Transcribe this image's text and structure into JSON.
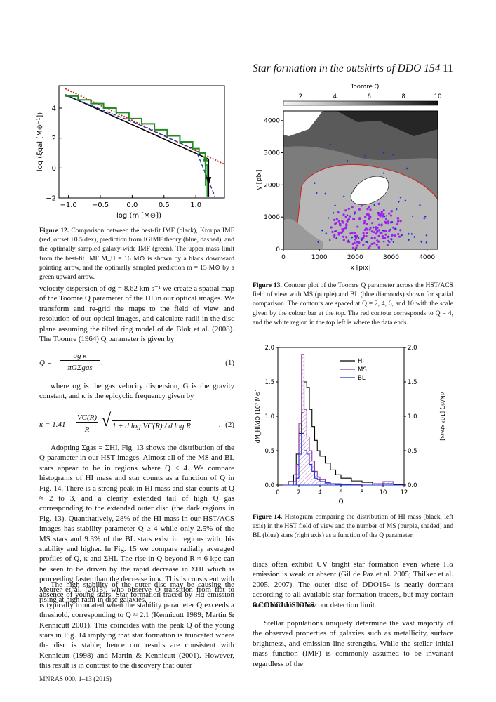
{
  "header": {
    "title": "Star formation in the outskirts of DDO 154",
    "page_number": "11"
  },
  "figure12": {
    "caption_label": "Figure 12.",
    "caption_text": "Comparison between the best-fit IMF (black), Kroupa IMF (red, offset +0.5 dex), prediction from IGIMF theory (blue, dashed), and the optimally sampled galaxy-wide IMF (green). The upper mass limit from the best-fit IMF M_U = 16 M⊙ is shown by a black downward pointing arrow, and the optimally sampled prediction m = 15 M⊙ by a green upward arrow.",
    "ylabel": "log (ξgal [M⊙⁻¹])",
    "xlabel": "log (m [M⊙])",
    "xticks": [
      "−1.0",
      "−0.5",
      "0.0",
      "0.5",
      "1.0"
    ],
    "yticks": [
      "−2",
      "0",
      "2",
      "4"
    ]
  },
  "figure13": {
    "caption_label": "Figure 13.",
    "caption_text": "Contour plot of the Toomre Q parameter across the HST/ACS field of view with MS (purple) and BL (blue diamonds) shown for spatial comparison. The contours are spaced at Q = 2, 4, 6, and 10 with the scale given by the colour bar at the top. The red contour corresponds to Q = 4, and the white region in the top left is where the data ends.",
    "colorbar_label": "Toomre Q",
    "colorbar_ticks": [
      "2",
      "4",
      "6",
      "8",
      "10"
    ],
    "xlabel": "x [pix]",
    "ylabel": "y [pix]",
    "xticks": [
      "0",
      "1000",
      "2000",
      "3000",
      "4000"
    ],
    "yticks": [
      "0",
      "1000",
      "2000",
      "3000",
      "4000"
    ]
  },
  "figure14": {
    "caption_label": "Figure 14.",
    "caption_text": "Histogram comparing the distribution of HI mass (black, left axis) in the HST field of view and the number of MS (purple, shaded) and BL (blue) stars (right axis) as a function of the Q parameter.",
    "xlabel": "Q",
    "ylabel_left": "dM_HI/dQ [10⁷ M⊙]",
    "ylabel_right": "dN/dQ [10³ stars]",
    "xticks": [
      "0",
      "2",
      "4",
      "6",
      "8",
      "10",
      "12"
    ],
    "yticks": [
      "0.0",
      "0.5",
      "1.0",
      "1.5",
      "2.0"
    ],
    "legend": [
      "HI",
      "MS",
      "BL"
    ]
  },
  "chart_data": [
    {
      "type": "line",
      "title": "",
      "xlabel": "log (m [M⊙])",
      "ylabel": "log (ξgal [M⊙⁻¹])",
      "xlim": [
        -1.15,
        1.45
      ],
      "ylim": [
        -2,
        5.5
      ],
      "series": [
        {
          "name": "",
          "color": "#000000",
          "x": [
            -1.05,
            1.2,
            1.2,
            1.2
          ],
          "y": [
            4.9,
            0.6,
            0.6,
            -1.9
          ]
        },
        {
          "name": "",
          "color": "#cc2222",
          "x": [
            -1.05,
            1.45
          ],
          "y": [
            5.3,
            0.25
          ]
        },
        {
          "name": "",
          "color": "#2233aa",
          "x": [
            -1.05,
            0.0,
            1.0,
            1.3
          ],
          "y": [
            4.85,
            3.1,
            1.2,
            -1.9
          ]
        },
        {
          "name": "",
          "color": "#228b22",
          "x": [
            -1.05,
            -0.85,
            -0.65,
            -0.45,
            -0.25,
            -0.05,
            0.15,
            0.35,
            0.55,
            0.75,
            0.95,
            1.05,
            1.15,
            1.18
          ],
          "y": [
            4.8,
            4.55,
            4.3,
            4.0,
            3.7,
            3.3,
            2.95,
            2.55,
            2.15,
            1.75,
            1.3,
            1.0,
            0.2,
            -1.9
          ]
        }
      ]
    },
    {
      "type": "heatmap",
      "title": "",
      "xlabel": "x [pix]",
      "ylabel": "y [pix]",
      "xlim": [
        0,
        4300
      ],
      "ylim": [
        0,
        4300
      ],
      "contour_levels": [
        2,
        4,
        6,
        10
      ],
      "colorbar_range": [
        1,
        10
      ],
      "colorbar_label": "Toomre Q"
    },
    {
      "type": "bar",
      "title": "",
      "xlabel": "Q",
      "ylabel": "dM_HI/dQ [10⁷ M⊙]",
      "xlim": [
        0,
        12
      ],
      "ylim": [
        0,
        2.0
      ],
      "x": [
        0.5,
        1.0,
        1.5,
        1.75,
        2.0,
        2.25,
        2.5,
        2.75,
        3.0,
        3.25,
        3.5,
        3.75,
        4.0,
        4.5,
        5.0,
        5.5,
        6.0,
        7.0,
        8.0,
        9.0,
        10.0,
        11.0,
        12.0
      ],
      "series": [
        {
          "name": "HI",
          "color": "#000000",
          "values": [
            0.0,
            0.05,
            0.15,
            0.45,
            0.75,
            1.05,
            1.5,
            1.42,
            1.1,
            0.85,
            0.65,
            0.5,
            0.42,
            0.32,
            0.22,
            0.15,
            0.1,
            0.06,
            0.04,
            0.02,
            0.02,
            0.01,
            0.0
          ]
        },
        {
          "name": "MS",
          "color": "#8b3a9e",
          "values": [
            0.0,
            0.0,
            0.05,
            0.3,
            0.9,
            1.9,
            1.1,
            0.7,
            0.5,
            0.35,
            0.2,
            0.12,
            0.08,
            0.04,
            0.02,
            0.02,
            0.01,
            0.01,
            0.0,
            0.02,
            0.05,
            0.0,
            0.0
          ]
        },
        {
          "name": "BL",
          "color": "#2233cc",
          "values": [
            0.0,
            0.0,
            0.0,
            0.1,
            0.45,
            0.75,
            0.5,
            0.45,
            0.3,
            0.2,
            0.1,
            0.08,
            0.05,
            0.03,
            0.02,
            0.01,
            0.01,
            0.0,
            0.0,
            0.0,
            0.02,
            0.0,
            0.0
          ]
        }
      ]
    }
  ],
  "left_column": {
    "para1": "velocity dispersion of σg = 8.62 km s⁻¹ we create a spatial map of the Toomre Q parameter of the HI in our optical images. We transform and re-grid the maps to the field of view and resolution of our optical images, and calculate radii in the disc plane assuming the tilted ring model of de Blok et al. (2008). The Toomre (1964) Q parameter is given by",
    "eq1_lhs": "Q  =",
    "eq1_num": "σg κ",
    "eq1_den": "πGΣgas",
    "eq1_tail": ",",
    "eq1_num_label": "(1)",
    "para2": "where σg is the gas velocity dispersion, G is the gravity constant, and κ is the epicyclic frequency given by",
    "eq2_lhs": "κ  = 1.41",
    "eq2_frac_num": "VC(R)",
    "eq2_frac_den": "R",
    "eq2_root": "1 + d log VC(R) / d log R",
    "eq2_tail": ".",
    "eq2_num_label": "(2)",
    "para3": "Adopting Σgas = ΣHI, Fig. 13 shows the distribution of the Q parameter in our HST images. Almost all of the MS and BL stars appear to be in regions where Q ≤ 4. We compare histograms of HI mass and star counts as a function of Q in Fig. 14. There is a strong peak in HI mass and star counts at Q ≈ 2 to 3, and a clearly extended tail of high Q gas corresponding to the extended outer disc (the dark regions in Fig. 13). Quantitatively, 28% of the HI mass in our HST/ACS images has stability parameter Q ≥ 4 while only 2.5% of the MS stars and 9.3% of the BL stars exist in regions with this stability and higher. In Fig. 15 we compare radially averaged profiles of Q, κ and ΣHI. The rise in Q beyond R ≈ 6 kpc can be seen to be driven by the rapid decrease in ΣHI which is proceeding faster than the decrease in κ. This is consistent with Meurer et al. (2013), who observe Q transition from flat to rising at high radii in disc galaxies.",
    "para4": "The high stability of the outer disc may be causing the absence of young stars. Star formation traced by Hα emission is typically truncated when the stability parameter Q exceeds a threshold, corresponding to Q ≈ 2.1 (Kennicutt 1989; Martin & Kennicutt 2001). This coincides with the peak Q of the young stars in Fig. 14 implying that star formation is truncated where the disc is stable; hence our results are consistent with Kennicutt (1998) and Martin & Kennicutt (2001). However, this result is in contrast to the discovery that outer"
  },
  "right_column": {
    "para1": "discs often exhibit UV bright star formation even where Hα emission is weak or absent (Gil de Paz et al. 2005; Thilker et al. 2005, 2007). The outer disc of DDO154 is nearly dormant according to all available star formation tracers, but may contain star formation below our detection limit.",
    "section_heading": "6   CONCLUSIONS",
    "para2": "Stellar populations uniquely determine the vast majority of the observed properties of galaxies such as metallicity, surface brightness, and emission line strengths. While the stellar initial mass function (IMF) is commonly assumed to be invariant regardless of the"
  },
  "footer": {
    "text": "MNRAS 000, 1–13 (2015)"
  }
}
